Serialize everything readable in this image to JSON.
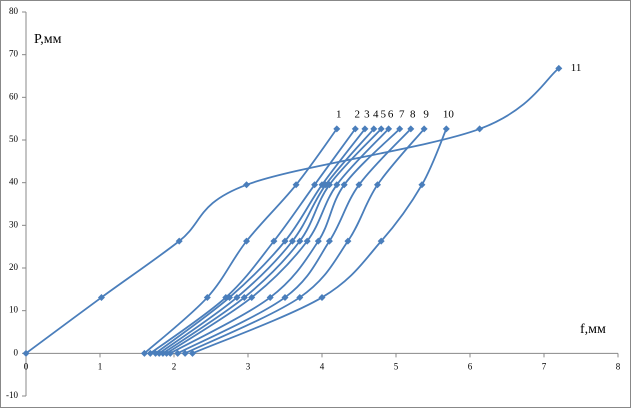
{
  "chart_data": {
    "type": "line",
    "x_label": "f,мм",
    "y_label": "P,мм",
    "xlim": [
      0,
      8
    ],
    "xticks": [
      0,
      1,
      2,
      3,
      4,
      5,
      6,
      7,
      8
    ],
    "ylim": [
      -10,
      80
    ],
    "yticks": [
      -10,
      0,
      10,
      20,
      30,
      40,
      50,
      60,
      70,
      80
    ],
    "grid": false,
    "smooth": true,
    "series": [
      {
        "name": "1",
        "color": "#4a7ebb",
        "x": [
          1.6,
          2.45,
          2.98,
          3.65,
          4.2
        ],
        "values": [
          0,
          13.1,
          26.3,
          39.5,
          52.6
        ]
      },
      {
        "name": "2",
        "color": "#4a7ebb",
        "x": [
          1.68,
          2.7,
          3.35,
          3.9,
          4.45
        ],
        "values": [
          0,
          13.1,
          26.3,
          39.5,
          52.6
        ]
      },
      {
        "name": "3",
        "color": "#4a7ebb",
        "x": [
          1.75,
          2.75,
          3.5,
          4.0,
          4.58
        ],
        "values": [
          0,
          13.1,
          26.3,
          39.5,
          52.6
        ]
      },
      {
        "name": "4",
        "color": "#4a7ebb",
        "x": [
          1.8,
          2.85,
          3.6,
          4.05,
          4.7
        ],
        "values": [
          0,
          13.1,
          26.3,
          39.5,
          52.6
        ]
      },
      {
        "name": "5",
        "color": "#4a7ebb",
        "x": [
          1.85,
          2.95,
          3.7,
          4.1,
          4.8
        ],
        "values": [
          0,
          13.1,
          26.3,
          39.5,
          52.6
        ]
      },
      {
        "name": "6",
        "color": "#4a7ebb",
        "x": [
          1.9,
          3.05,
          3.8,
          4.2,
          4.9
        ],
        "values": [
          0,
          13.1,
          26.3,
          39.5,
          52.6
        ]
      },
      {
        "name": "7",
        "color": "#4a7ebb",
        "x": [
          1.95,
          3.3,
          3.95,
          4.3,
          5.05
        ],
        "values": [
          0,
          13.1,
          26.3,
          39.5,
          52.6
        ]
      },
      {
        "name": "8",
        "color": "#4a7ebb",
        "x": [
          2.05,
          3.5,
          4.1,
          4.5,
          5.2
        ],
        "values": [
          0,
          13.1,
          26.3,
          39.5,
          52.6
        ]
      },
      {
        "name": "9",
        "color": "#4a7ebb",
        "x": [
          2.15,
          3.7,
          4.35,
          4.75,
          5.38
        ],
        "values": [
          0,
          13.1,
          26.3,
          39.5,
          52.6
        ]
      },
      {
        "name": "10",
        "color": "#4a7ebb",
        "x": [
          2.25,
          4.0,
          4.8,
          5.35,
          5.68
        ],
        "values": [
          0,
          13.1,
          26.3,
          39.5,
          52.6
        ]
      },
      {
        "name": "11",
        "color": "#4a7ebb",
        "x": [
          0,
          1.02,
          2.07,
          2.98,
          6.13,
          7.2
        ],
        "values": [
          0,
          13.1,
          26.3,
          39.5,
          52.6,
          66.8
        ]
      }
    ]
  }
}
